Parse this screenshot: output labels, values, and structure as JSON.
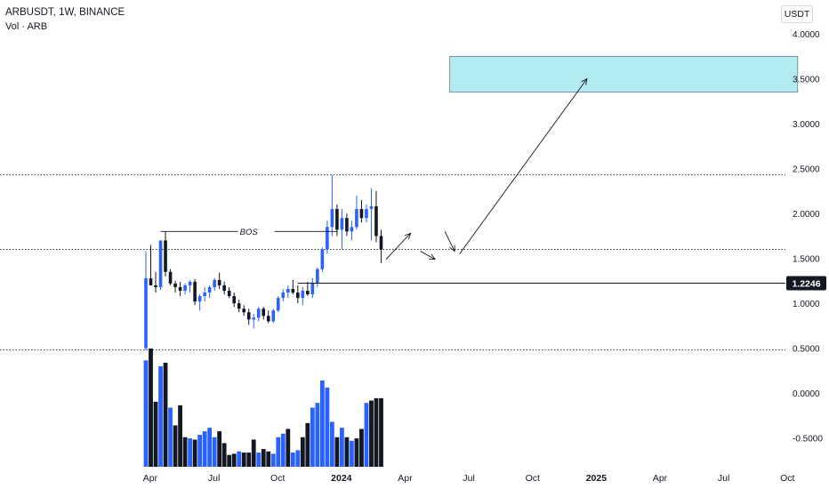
{
  "header": {
    "title": "ARBUSDT, 1W, BINANCE",
    "volume_label": "Vol · ARB",
    "currency": "USDT"
  },
  "colors": {
    "up": "#2962ff",
    "down": "#131722",
    "annotation": "#131722",
    "target_zone": "#b2ebf2",
    "grid_line": "#131722"
  },
  "chart_data": {
    "type": "candlestick",
    "y_axis": {
      "ticks": [
        "4.0000",
        "3.5000",
        "3.0000",
        "2.5000",
        "2.0000",
        "1.5000",
        "1.0000",
        "0.5000",
        "0.0000",
        "-0.5000"
      ],
      "ylim": [
        -0.82,
        4.12
      ]
    },
    "x_axis": {
      "ticks": [
        "Apr",
        "Jul",
        "Oct",
        "2024",
        "Apr",
        "Jul",
        "Oct",
        "2025",
        "Apr",
        "Jul",
        "Oct"
      ],
      "tick_weeks": [
        0.9,
        13.9,
        26.9,
        39.9,
        52.9,
        65.9,
        78.9,
        91.9,
        104.9,
        117.9,
        130.9
      ]
    },
    "price_label": "1.2246",
    "horizontal_levels": [
      2.43,
      1.6,
      0.48
    ],
    "bos_label": "BOS",
    "bos_level": 1.8,
    "bos_from_week": 3,
    "bos_to_week": 39,
    "structure_level": 1.2246,
    "structure_from_week": 31,
    "target_zone": {
      "from_week": 62,
      "to_week": 133,
      "low": 3.35,
      "high": 3.75
    },
    "projection_path": [
      [
        49,
        1.49
      ],
      [
        54,
        1.78
      ],
      [
        56,
        1.58
      ],
      [
        59,
        1.49
      ],
      [
        61,
        1.8
      ],
      [
        63,
        1.58
      ],
      [
        64,
        1.55
      ],
      [
        90,
        3.5
      ]
    ],
    "candles": [
      {
        "o": 0.5,
        "h": 1.58,
        "l": 0.48,
        "c": 1.28
      },
      {
        "o": 1.28,
        "h": 1.65,
        "l": 1.2,
        "c": 1.2
      },
      {
        "o": 1.2,
        "h": 1.35,
        "l": 1.12,
        "c": 1.18
      },
      {
        "o": 1.18,
        "h": 1.7,
        "l": 1.15,
        "c": 1.7
      },
      {
        "o": 1.7,
        "h": 1.8,
        "l": 1.3,
        "c": 1.35
      },
      {
        "o": 1.35,
        "h": 1.38,
        "l": 1.2,
        "c": 1.22
      },
      {
        "o": 1.22,
        "h": 1.25,
        "l": 1.12,
        "c": 1.18
      },
      {
        "o": 1.18,
        "h": 1.24,
        "l": 1.08,
        "c": 1.14
      },
      {
        "o": 1.14,
        "h": 1.22,
        "l": 1.1,
        "c": 1.2
      },
      {
        "o": 1.2,
        "h": 1.26,
        "l": 1.12,
        "c": 1.24
      },
      {
        "o": 1.24,
        "h": 1.27,
        "l": 0.98,
        "c": 1.02
      },
      {
        "o": 1.02,
        "h": 1.1,
        "l": 0.92,
        "c": 1.08
      },
      {
        "o": 1.08,
        "h": 1.18,
        "l": 1.02,
        "c": 1.12
      },
      {
        "o": 1.12,
        "h": 1.2,
        "l": 1.06,
        "c": 1.18
      },
      {
        "o": 1.18,
        "h": 1.28,
        "l": 1.14,
        "c": 1.26
      },
      {
        "o": 1.26,
        "h": 1.34,
        "l": 1.16,
        "c": 1.2
      },
      {
        "o": 1.2,
        "h": 1.24,
        "l": 1.1,
        "c": 1.14
      },
      {
        "o": 1.14,
        "h": 1.18,
        "l": 1.06,
        "c": 1.08
      },
      {
        "o": 1.08,
        "h": 1.12,
        "l": 0.96,
        "c": 1.0
      },
      {
        "o": 1.0,
        "h": 1.04,
        "l": 0.9,
        "c": 0.94
      },
      {
        "o": 0.94,
        "h": 0.98,
        "l": 0.86,
        "c": 0.9
      },
      {
        "o": 0.9,
        "h": 0.94,
        "l": 0.76,
        "c": 0.82
      },
      {
        "o": 0.82,
        "h": 0.88,
        "l": 0.72,
        "c": 0.84
      },
      {
        "o": 0.84,
        "h": 0.96,
        "l": 0.8,
        "c": 0.94
      },
      {
        "o": 0.94,
        "h": 0.96,
        "l": 0.82,
        "c": 0.86
      },
      {
        "o": 0.86,
        "h": 0.92,
        "l": 0.78,
        "c": 0.8
      },
      {
        "o": 0.8,
        "h": 0.94,
        "l": 0.78,
        "c": 0.92
      },
      {
        "o": 0.92,
        "h": 1.08,
        "l": 0.9,
        "c": 1.06
      },
      {
        "o": 1.06,
        "h": 1.16,
        "l": 1.02,
        "c": 1.12
      },
      {
        "o": 1.12,
        "h": 1.2,
        "l": 1.06,
        "c": 1.16
      },
      {
        "o": 1.16,
        "h": 1.26,
        "l": 1.1,
        "c": 1.12
      },
      {
        "o": 1.12,
        "h": 1.2,
        "l": 1.0,
        "c": 1.06
      },
      {
        "o": 1.06,
        "h": 1.18,
        "l": 0.98,
        "c": 1.14
      },
      {
        "o": 1.14,
        "h": 1.24,
        "l": 1.08,
        "c": 1.1
      },
      {
        "o": 1.1,
        "h": 1.28,
        "l": 1.06,
        "c": 1.22
      },
      {
        "o": 1.22,
        "h": 1.4,
        "l": 1.18,
        "c": 1.38
      },
      {
        "o": 1.38,
        "h": 1.62,
        "l": 1.35,
        "c": 1.6
      },
      {
        "o": 1.6,
        "h": 1.92,
        "l": 1.55,
        "c": 1.85
      },
      {
        "o": 1.85,
        "h": 2.43,
        "l": 1.75,
        "c": 2.05
      },
      {
        "o": 2.05,
        "h": 2.1,
        "l": 1.75,
        "c": 1.82
      },
      {
        "o": 1.82,
        "h": 2.05,
        "l": 1.6,
        "c": 1.95
      },
      {
        "o": 1.95,
        "h": 2.0,
        "l": 1.75,
        "c": 1.8
      },
      {
        "o": 1.8,
        "h": 1.92,
        "l": 1.7,
        "c": 1.85
      },
      {
        "o": 1.85,
        "h": 2.2,
        "l": 1.82,
        "c": 2.05
      },
      {
        "o": 2.05,
        "h": 2.15,
        "l": 1.9,
        "c": 1.95
      },
      {
        "o": 1.95,
        "h": 2.1,
        "l": 1.9,
        "c": 2.05
      },
      {
        "o": 2.05,
        "h": 2.28,
        "l": 1.7,
        "c": 2.08
      },
      {
        "o": 2.08,
        "h": 2.25,
        "l": 1.68,
        "c": 1.75
      },
      {
        "o": 1.75,
        "h": 1.82,
        "l": 1.45,
        "c": 1.6
      }
    ],
    "volume": [
      {
        "v": 0.9,
        "up": true
      },
      {
        "v": 1.0,
        "up": false
      },
      {
        "v": 0.55,
        "up": false
      },
      {
        "v": 0.85,
        "up": true
      },
      {
        "v": 0.88,
        "up": false
      },
      {
        "v": 0.5,
        "up": true
      },
      {
        "v": 0.35,
        "up": false
      },
      {
        "v": 0.52,
        "up": false
      },
      {
        "v": 0.25,
        "up": false
      },
      {
        "v": 0.24,
        "up": true
      },
      {
        "v": 0.23,
        "up": false
      },
      {
        "v": 0.27,
        "up": true
      },
      {
        "v": 0.3,
        "up": true
      },
      {
        "v": 0.33,
        "up": true
      },
      {
        "v": 0.25,
        "up": true
      },
      {
        "v": 0.3,
        "up": false
      },
      {
        "v": 0.2,
        "up": false
      },
      {
        "v": 0.1,
        "up": false
      },
      {
        "v": 0.11,
        "up": false
      },
      {
        "v": 0.13,
        "up": true
      },
      {
        "v": 0.12,
        "up": false
      },
      {
        "v": 0.12,
        "up": false
      },
      {
        "v": 0.23,
        "up": false
      },
      {
        "v": 0.12,
        "up": true
      },
      {
        "v": 0.15,
        "up": false
      },
      {
        "v": 0.13,
        "up": false
      },
      {
        "v": 0.11,
        "up": true
      },
      {
        "v": 0.25,
        "up": true
      },
      {
        "v": 0.28,
        "up": true
      },
      {
        "v": 0.32,
        "up": false
      },
      {
        "v": 0.12,
        "up": true
      },
      {
        "v": 0.14,
        "up": true
      },
      {
        "v": 0.25,
        "up": false
      },
      {
        "v": 0.37,
        "up": false
      },
      {
        "v": 0.5,
        "up": true
      },
      {
        "v": 0.54,
        "up": true
      },
      {
        "v": 0.73,
        "up": true
      },
      {
        "v": 0.67,
        "up": true
      },
      {
        "v": 0.38,
        "up": true
      },
      {
        "v": 0.25,
        "up": false
      },
      {
        "v": 0.33,
        "up": true
      },
      {
        "v": 0.25,
        "up": false
      },
      {
        "v": 0.22,
        "up": true
      },
      {
        "v": 0.24,
        "up": false
      },
      {
        "v": 0.32,
        "up": false
      },
      {
        "v": 0.54,
        "up": true
      },
      {
        "v": 0.56,
        "up": false
      },
      {
        "v": 0.58,
        "up": false
      },
      {
        "v": 0.58,
        "up": false
      }
    ]
  }
}
